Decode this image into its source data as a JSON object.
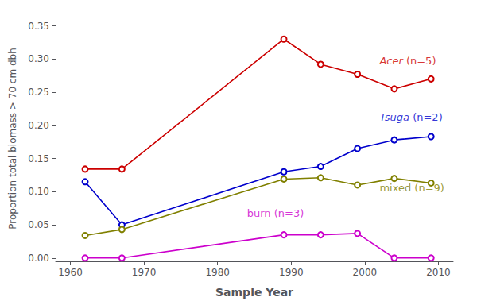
{
  "chart_data": {
    "type": "line",
    "xlabel": "Sample Year",
    "ylabel": "Proportion total biomass > 70 cm dbh",
    "xlim": [
      1958,
      2012
    ],
    "ylim": [
      -0.005,
      0.365
    ],
    "xticks": [
      1960,
      1970,
      1980,
      1990,
      2000,
      2010
    ],
    "yticks": [
      {
        "value": 0.0,
        "label": "0.00"
      },
      0.05,
      {
        "value": 0.1,
        "label": "0.10"
      },
      0.15,
      {
        "value": 0.2,
        "label": "0.20"
      },
      0.25,
      {
        "value": 0.3,
        "label": "0.30"
      },
      0.35
    ],
    "grid": false,
    "marker": "circle",
    "series": [
      {
        "name": "Acer (n=5)",
        "color": "#cc0000",
        "x": [
          1962,
          1967,
          1989,
          1994,
          1999,
          2004,
          2009
        ],
        "values": [
          0.134,
          0.134,
          0.33,
          0.292,
          0.277,
          0.255,
          0.27
        ]
      },
      {
        "name": "Tsuga (n=2)",
        "color": "#0000cc",
        "x": [
          1962,
          1967,
          1989,
          1994,
          1999,
          2004,
          2009
        ],
        "values": [
          0.115,
          0.05,
          0.13,
          0.138,
          0.165,
          0.178,
          0.183
        ]
      },
      {
        "name": "mixed (n=9)",
        "color": "#808000",
        "x": [
          1962,
          1967,
          1989,
          1994,
          1999,
          2004,
          2009
        ],
        "values": [
          0.034,
          0.043,
          0.119,
          0.121,
          0.11,
          0.12,
          0.113
        ]
      },
      {
        "name": "burn (n=3)",
        "color": "#cc00cc",
        "x": [
          1962,
          1967,
          1989,
          1994,
          1999,
          2004,
          2009
        ],
        "values": [
          0.0,
          0.0,
          0.035,
          0.035,
          0.037,
          0.0,
          0.0
        ]
      }
    ],
    "annotations": [
      {
        "text": "Acer (n=5)",
        "italic": "Acer",
        "x": 2002,
        "y": 0.29,
        "color": "#cc0000"
      },
      {
        "text": "Tsuga (n=2)",
        "italic": "Tsuga",
        "x": 2002,
        "y": 0.205,
        "color": "#0000cc"
      },
      {
        "text": "mixed (n=9)",
        "x": 2002,
        "y": 0.098,
        "color": "#808000"
      },
      {
        "text": "burn (n=3)",
        "x": 1984,
        "y": 0.06,
        "color": "#cc00cc"
      }
    ]
  }
}
